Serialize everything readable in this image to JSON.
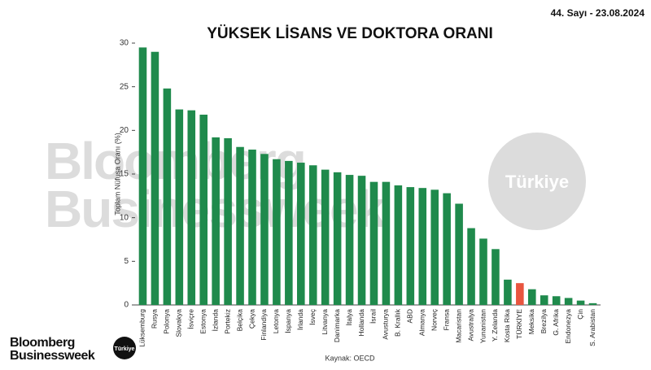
{
  "chart_data": {
    "type": "bar",
    "title": "YÜKSEK LİSANS VE DOKTORA ORANI",
    "issue": "44. Sayı - 23.08.2024",
    "y_label": "Toplam Nüfusa Oranı (%)",
    "source": "Kaynak: OECD",
    "watermark": {
      "line1": "Bloomberg",
      "line2": "Businessweek",
      "badge": "Türkiye"
    },
    "logo": {
      "line1": "Bloomberg",
      "line2": "Businessweek",
      "badge": "Türkiye"
    },
    "categories": [
      "Lüksemburg",
      "Rusya",
      "Polonya",
      "Slovakya",
      "İsviçre",
      "Estonya",
      "İzlanda",
      "Portekiz",
      "Belçika",
      "Çekya",
      "Finlandiya",
      "Letonya",
      "İspanya",
      "İrlanda",
      "İsveç",
      "Litvanya",
      "Danimarka",
      "İtalya",
      "Hollanda",
      "İsrail",
      "Avusturya",
      "B. Krallık",
      "ABD",
      "Almanya",
      "Norveç",
      "Fransa",
      "Macaristan",
      "Avustralya",
      "Yunanistan",
      "Y. Zelanda",
      "Kosta Rika",
      "TÜRKİYE",
      "Meksika",
      "Brezilya",
      "G. Afrika",
      "Endonezya",
      "Çin",
      "S. Arabistan"
    ],
    "values": [
      29.5,
      29.0,
      24.8,
      22.4,
      22.3,
      21.8,
      19.2,
      19.1,
      18.1,
      17.8,
      17.3,
      16.7,
      16.5,
      16.3,
      16.0,
      15.5,
      15.2,
      14.9,
      14.8,
      14.1,
      14.1,
      13.7,
      13.5,
      13.4,
      13.2,
      12.8,
      11.6,
      8.8,
      7.6,
      6.4,
      2.9,
      2.5,
      1.8,
      1.1,
      1.0,
      0.8,
      0.5,
      0.2
    ],
    "colors": [
      "#1f8a4c",
      "#1f8a4c",
      "#1f8a4c",
      "#1f8a4c",
      "#1f8a4c",
      "#1f8a4c",
      "#1f8a4c",
      "#1f8a4c",
      "#1f8a4c",
      "#1f8a4c",
      "#1f8a4c",
      "#1f8a4c",
      "#1f8a4c",
      "#1f8a4c",
      "#1f8a4c",
      "#1f8a4c",
      "#1f8a4c",
      "#1f8a4c",
      "#1f8a4c",
      "#1f8a4c",
      "#1f8a4c",
      "#1f8a4c",
      "#1f8a4c",
      "#1f8a4c",
      "#1f8a4c",
      "#1f8a4c",
      "#1f8a4c",
      "#1f8a4c",
      "#1f8a4c",
      "#1f8a4c",
      "#1f8a4c",
      "#e8553f",
      "#1f8a4c",
      "#1f8a4c",
      "#1f8a4c",
      "#1f8a4c",
      "#1f8a4c",
      "#1f8a4c"
    ],
    "ylim": [
      0,
      30
    ],
    "yticks": [
      0,
      5,
      10,
      15,
      20,
      25,
      30
    ],
    "grid": false
  }
}
